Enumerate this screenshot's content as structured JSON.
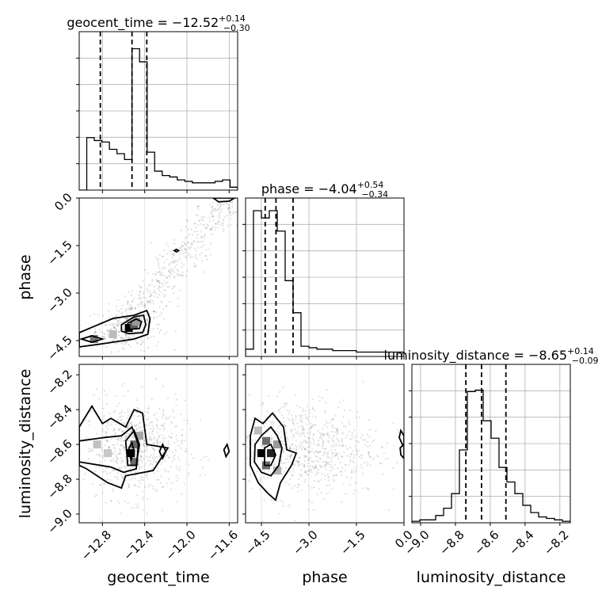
{
  "chart_data": {
    "type": "corner",
    "parameters": [
      "geocent_time",
      "phase",
      "luminosity_distance"
    ],
    "titles": [
      {
        "name": "geocent_time",
        "median": "−12.52",
        "plus": "+0.14",
        "minus": "−0.30"
      },
      {
        "name": "phase",
        "median": "−4.04",
        "plus": "+0.54",
        "minus": "−0.34"
      },
      {
        "name": "luminosity_distance",
        "median": "−8.65",
        "plus": "+0.14",
        "minus": "−0.09"
      }
    ],
    "ranges": {
      "geocent_time": [
        -13.02,
        -11.52
      ],
      "phase": [
        -5.0,
        0.0
      ],
      "luminosity_distance": [
        -9.05,
        -8.14
      ]
    },
    "ticks": {
      "geocent_time": [
        -12.8,
        -12.4,
        -12.0,
        -11.6
      ],
      "phase": [
        -4.5,
        -3.0,
        -1.5,
        0.0
      ],
      "luminosity_distance": [
        -9.0,
        -8.8,
        -8.6,
        -8.4,
        -8.2
      ]
    },
    "tick_labels": {
      "geocent_time": [
        "−12.8",
        "−12.4",
        "−12.0",
        "−11.6"
      ],
      "phase": [
        "−4.5",
        "−3.0",
        "−1.5",
        "0.0"
      ],
      "luminosity_distance": [
        "−9.0",
        "−8.8",
        "−8.6",
        "−8.4",
        "−8.2"
      ]
    },
    "quantiles": {
      "geocent_time": [
        -12.82,
        -12.52,
        -12.38
      ],
      "phase": [
        -4.38,
        -4.04,
        -3.5
      ],
      "luminosity_distance": [
        -8.74,
        -8.65,
        -8.51
      ]
    },
    "histograms": {
      "geocent_time": [
        0,
        0.36,
        0.34,
        0.33,
        0.28,
        0.25,
        0.21,
        0.97,
        0.88,
        0.26,
        0.13,
        0.1,
        0.09,
        0.07,
        0.06,
        0.05,
        0.05,
        0.05,
        0.06,
        0.07,
        0.02
      ],
      "phase": [
        0.05,
        1.0,
        0.95,
        1.0,
        0.86,
        0.52,
        0.3,
        0.07,
        0.06,
        0.05,
        0.05,
        0.04,
        0.04,
        0.04,
        0.03,
        0.03,
        0.03,
        0.03,
        0.03,
        0.03
      ],
      "luminosity_distance": [
        0.01,
        0.02,
        0.02,
        0.05,
        0.1,
        0.2,
        0.5,
        0.9,
        0.91,
        0.7,
        0.58,
        0.38,
        0.28,
        0.2,
        0.12,
        0.07,
        0.04,
        0.03,
        0.02,
        0.01
      ]
    },
    "grid": true,
    "scatter_clusters": [
      {
        "pair": [
          "geocent_time",
          "phase"
        ],
        "cx": -12.55,
        "cy": -4.1,
        "sx": 0.16,
        "sy": 0.35,
        "n": 260
      },
      {
        "pair": [
          "geocent_time",
          "phase"
        ],
        "band_x": [
          -12.7,
          -11.6
        ],
        "band_y": [
          -4.5,
          0.0
        ],
        "width": 0.1,
        "n": 520
      },
      {
        "pair": [
          "geocent_time",
          "luminosity_distance"
        ],
        "cx": -12.5,
        "cy": -8.63,
        "sx": 0.24,
        "sy": 0.14,
        "n": 700
      },
      {
        "pair": [
          "phase",
          "luminosity_distance"
        ],
        "cx": -3.2,
        "cy": -8.62,
        "sx": 1.2,
        "sy": 0.14,
        "n": 800
      }
    ],
    "contours": [
      {
        "pair": [
          "geocent_time",
          "phase"
        ],
        "points": [
          [
            -13.02,
            -4.25
          ],
          [
            -12.7,
            -3.8
          ],
          [
            -12.5,
            -3.7
          ],
          [
            -12.38,
            -3.55
          ],
          [
            -12.35,
            -3.8
          ],
          [
            -12.37,
            -4.3
          ],
          [
            -12.5,
            -4.45
          ],
          [
            -12.8,
            -4.6
          ],
          [
            -13.02,
            -4.7
          ]
        ]
      },
      {
        "pair": [
          "geocent_time",
          "phase"
        ],
        "points": [
          [
            -12.62,
            -4.0
          ],
          [
            -12.5,
            -3.75
          ],
          [
            -12.41,
            -3.7
          ],
          [
            -12.39,
            -4.0
          ],
          [
            -12.42,
            -4.25
          ],
          [
            -12.55,
            -4.28
          ],
          [
            -12.62,
            -4.2
          ]
        ]
      },
      {
        "pair": [
          "geocent_time",
          "phase"
        ],
        "points": [
          [
            -12.56,
            -3.95
          ],
          [
            -12.48,
            -3.82
          ],
          [
            -12.43,
            -3.9
          ],
          [
            -12.45,
            -4.12
          ],
          [
            -12.54,
            -4.14
          ]
        ]
      },
      {
        "pair": [
          "geocent_time",
          "phase"
        ],
        "points": [
          [
            -13.0,
            -4.45
          ],
          [
            -12.9,
            -4.35
          ],
          [
            -12.8,
            -4.45
          ],
          [
            -12.9,
            -4.55
          ]
        ]
      },
      {
        "pair": [
          "geocent_time",
          "phase"
        ],
        "points": [
          [
            -12.12,
            -1.66
          ],
          [
            -12.1,
            -1.62
          ],
          [
            -12.08,
            -1.66
          ],
          [
            -12.1,
            -1.7
          ]
        ]
      },
      {
        "pair": [
          "geocent_time",
          "phase"
        ],
        "points": [
          [
            -11.75,
            0.0
          ],
          [
            -11.7,
            -0.12
          ],
          [
            -11.6,
            -0.1
          ],
          [
            -11.55,
            0.0
          ]
        ]
      },
      {
        "pair": [
          "geocent_time",
          "luminosity_distance"
        ],
        "points": [
          [
            -13.02,
            -8.5
          ],
          [
            -12.9,
            -8.38
          ],
          [
            -12.8,
            -8.48
          ],
          [
            -12.72,
            -8.45
          ],
          [
            -12.58,
            -8.5
          ],
          [
            -12.5,
            -8.4
          ],
          [
            -12.42,
            -8.42
          ],
          [
            -12.38,
            -8.6
          ],
          [
            -12.18,
            -8.62
          ],
          [
            -12.32,
            -8.75
          ],
          [
            -12.58,
            -8.78
          ],
          [
            -12.62,
            -8.85
          ],
          [
            -12.75,
            -8.82
          ],
          [
            -12.95,
            -8.74
          ],
          [
            -13.02,
            -8.72
          ]
        ]
      },
      {
        "pair": [
          "geocent_time",
          "luminosity_distance"
        ],
        "points": [
          [
            -13.02,
            -8.58
          ],
          [
            -12.78,
            -8.56
          ],
          [
            -12.62,
            -8.55
          ],
          [
            -12.52,
            -8.5
          ],
          [
            -12.46,
            -8.6
          ],
          [
            -12.48,
            -8.74
          ],
          [
            -12.6,
            -8.76
          ],
          [
            -12.72,
            -8.73
          ],
          [
            -13.02,
            -8.7
          ]
        ]
      },
      {
        "pair": [
          "geocent_time",
          "luminosity_distance"
        ],
        "points": [
          [
            -12.58,
            -8.58
          ],
          [
            -12.5,
            -8.52
          ],
          [
            -12.45,
            -8.6
          ],
          [
            -12.48,
            -8.72
          ],
          [
            -12.56,
            -8.72
          ]
        ]
      },
      {
        "pair": [
          "geocent_time",
          "luminosity_distance"
        ],
        "points": [
          [
            -12.55,
            -8.62
          ],
          [
            -12.52,
            -8.59
          ],
          [
            -12.5,
            -8.64
          ],
          [
            -12.53,
            -8.69
          ]
        ]
      },
      {
        "pair": [
          "geocent_time",
          "luminosity_distance"
        ],
        "points": [
          [
            -12.26,
            -8.64
          ],
          [
            -12.23,
            -8.6
          ],
          [
            -12.2,
            -8.64
          ],
          [
            -12.23,
            -8.68
          ]
        ]
      },
      {
        "pair": [
          "geocent_time",
          "luminosity_distance"
        ],
        "points": [
          [
            -11.65,
            -8.63
          ],
          [
            -11.62,
            -8.6
          ],
          [
            -11.6,
            -8.64
          ],
          [
            -11.63,
            -8.67
          ]
        ]
      },
      {
        "pair": [
          "phase",
          "luminosity_distance"
        ],
        "points": [
          [
            -4.85,
            -8.55
          ],
          [
            -4.7,
            -8.45
          ],
          [
            -4.45,
            -8.48
          ],
          [
            -4.15,
            -8.42
          ],
          [
            -3.8,
            -8.5
          ],
          [
            -3.7,
            -8.63
          ],
          [
            -3.4,
            -8.65
          ],
          [
            -3.55,
            -8.72
          ],
          [
            -3.9,
            -8.82
          ],
          [
            -4.05,
            -8.92
          ],
          [
            -4.3,
            -8.88
          ],
          [
            -4.6,
            -8.82
          ],
          [
            -4.85,
            -8.72
          ]
        ]
      },
      {
        "pair": [
          "phase",
          "luminosity_distance"
        ],
        "points": [
          [
            -4.7,
            -8.6
          ],
          [
            -4.5,
            -8.55
          ],
          [
            -4.2,
            -8.5
          ],
          [
            -4.0,
            -8.55
          ],
          [
            -3.85,
            -8.62
          ],
          [
            -3.95,
            -8.72
          ],
          [
            -4.2,
            -8.78
          ],
          [
            -4.5,
            -8.76
          ],
          [
            -4.72,
            -8.7
          ]
        ]
      },
      {
        "pair": [
          "phase",
          "luminosity_distance"
        ],
        "points": [
          [
            -4.4,
            -8.62
          ],
          [
            -4.2,
            -8.6
          ],
          [
            -4.05,
            -8.66
          ],
          [
            -4.2,
            -8.72
          ],
          [
            -4.4,
            -8.72
          ]
        ]
      },
      {
        "pair": [
          "phase",
          "luminosity_distance"
        ],
        "points": [
          [
            0.0,
            -8.55
          ],
          [
            -0.1,
            -8.52
          ],
          [
            -0.15,
            -8.56
          ],
          [
            -0.05,
            -8.6
          ],
          [
            0.0,
            -8.6
          ]
        ]
      },
      {
        "pair": [
          "phase",
          "luminosity_distance"
        ],
        "points": [
          [
            0.0,
            -8.6
          ],
          [
            -0.12,
            -8.62
          ],
          [
            -0.1,
            -8.66
          ],
          [
            0.0,
            -8.68
          ]
        ]
      }
    ],
    "density_cells": [
      {
        "pair": [
          "geocent_time",
          "phase"
        ],
        "x": -12.55,
        "y": -4.1,
        "level": 1.0
      },
      {
        "pair": [
          "geocent_time",
          "phase"
        ],
        "x": -12.5,
        "y": -4.0,
        "level": 0.6
      },
      {
        "pair": [
          "geocent_time",
          "phase"
        ],
        "x": -12.48,
        "y": -3.9,
        "level": 0.35
      },
      {
        "pair": [
          "geocent_time",
          "phase"
        ],
        "x": -12.88,
        "y": -4.45,
        "level": 0.5
      },
      {
        "pair": [
          "geocent_time",
          "phase"
        ],
        "x": -12.7,
        "y": -4.3,
        "level": 0.2
      },
      {
        "pair": [
          "geocent_time",
          "luminosity_distance"
        ],
        "x": -12.53,
        "y": -8.65,
        "level": 1.0
      },
      {
        "pair": [
          "geocent_time",
          "luminosity_distance"
        ],
        "x": -12.5,
        "y": -8.6,
        "level": 0.55
      },
      {
        "pair": [
          "geocent_time",
          "luminosity_distance"
        ],
        "x": -12.5,
        "y": -8.7,
        "level": 0.55
      },
      {
        "pair": [
          "geocent_time",
          "luminosity_distance"
        ],
        "x": -12.45,
        "y": -8.55,
        "level": 0.3
      },
      {
        "pair": [
          "geocent_time",
          "luminosity_distance"
        ],
        "x": -12.85,
        "y": -8.6,
        "level": 0.18
      },
      {
        "pair": [
          "geocent_time",
          "luminosity_distance"
        ],
        "x": -12.75,
        "y": -8.65,
        "level": 0.15
      },
      {
        "pair": [
          "phase",
          "luminosity_distance"
        ],
        "x": -4.5,
        "y": -8.65,
        "level": 1.0
      },
      {
        "pair": [
          "phase",
          "luminosity_distance"
        ],
        "x": -4.2,
        "y": -8.65,
        "level": 0.85
      },
      {
        "pair": [
          "phase",
          "luminosity_distance"
        ],
        "x": -4.35,
        "y": -8.58,
        "level": 0.55
      },
      {
        "pair": [
          "phase",
          "luminosity_distance"
        ],
        "x": -4.35,
        "y": -8.72,
        "level": 0.55
      },
      {
        "pair": [
          "phase",
          "luminosity_distance"
        ],
        "x": -4.0,
        "y": -8.6,
        "level": 0.35
      },
      {
        "pair": [
          "phase",
          "luminosity_distance"
        ],
        "x": -4.6,
        "y": -8.52,
        "level": 0.2
      },
      {
        "pair": [
          "phase",
          "luminosity_distance"
        ],
        "x": -4.0,
        "y": -8.75,
        "level": 0.25
      }
    ]
  }
}
